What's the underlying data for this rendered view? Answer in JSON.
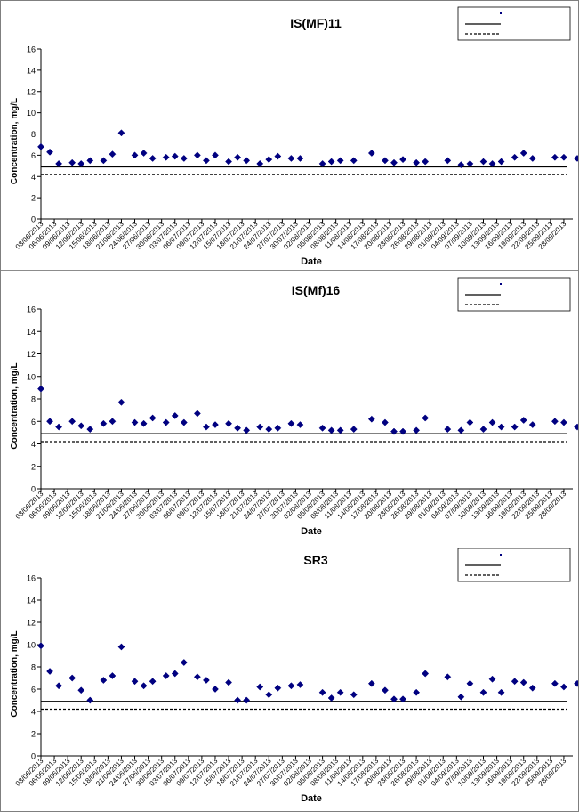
{
  "chart_data": [
    {
      "type": "scatter",
      "title": "IS(MF)11",
      "xlabel": "Date",
      "ylabel": "Concentration, mg/L",
      "ylim": [
        0,
        16
      ],
      "yticks": [
        0,
        2,
        4,
        6,
        8,
        10,
        12,
        14,
        16
      ],
      "grid": false,
      "legend_position": "top-right",
      "xlim": [
        "03/06/2013",
        "30/09/2013"
      ],
      "xtick_labels": [
        "03/06/2013",
        "06/06/2013",
        "09/06/2013",
        "12/06/2013",
        "15/06/2013",
        "18/06/2013",
        "21/06/2013",
        "24/06/2013",
        "27/06/2013",
        "30/06/2013",
        "03/07/2013",
        "06/07/2013",
        "09/07/2013",
        "12/07/2013",
        "15/07/2013",
        "18/07/2013",
        "21/07/2013",
        "24/07/2013",
        "27/07/2013",
        "30/07/2013",
        "02/08/2013",
        "05/08/2013",
        "08/08/2013",
        "11/08/2013",
        "14/08/2013",
        "17/08/2013",
        "20/08/2013",
        "23/08/2013",
        "26/08/2013",
        "29/08/2013",
        "01/09/2013",
        "04/09/2013",
        "07/09/2013",
        "10/09/2013",
        "13/09/2013",
        "16/09/2013",
        "19/09/2013",
        "22/09/2013",
        "25/09/2013",
        "28/09/2013"
      ],
      "x": [
        "03/06/2013",
        "05/06/2013",
        "07/06/2013",
        "10/06/2013",
        "12/06/2013",
        "14/06/2013",
        "17/06/2013",
        "19/06/2013",
        "21/06/2013",
        "24/06/2013",
        "26/06/2013",
        "28/06/2013",
        "01/07/2013",
        "03/07/2013",
        "05/07/2013",
        "08/07/2013",
        "10/07/2013",
        "12/07/2013",
        "15/07/2013",
        "17/07/2013",
        "19/07/2013",
        "22/07/2013",
        "24/07/2013",
        "26/07/2013",
        "29/07/2013",
        "31/07/2013",
        "05/08/2013",
        "07/08/2013",
        "09/08/2013",
        "12/08/2013",
        "16/08/2013",
        "19/08/2013",
        "21/08/2013",
        "23/08/2013",
        "26/08/2013",
        "28/08/2013",
        "02/09/2013",
        "05/09/2013",
        "07/09/2013",
        "10/09/2013",
        "12/09/2013",
        "14/09/2013",
        "17/09/2013",
        "19/09/2013",
        "21/09/2013",
        "26/09/2013",
        "28/09/2013",
        "01/10/2013"
      ],
      "series": [
        {
          "color": "#000080",
          "marker": "diamond",
          "values": [
            6.8,
            6.3,
            5.2,
            5.3,
            5.2,
            5.5,
            5.5,
            6.1,
            8.1,
            6.0,
            6.2,
            5.7,
            5.8,
            5.9,
            5.7,
            6.0,
            5.5,
            6.0,
            5.4,
            5.8,
            5.5,
            5.2,
            5.6,
            5.9,
            5.7,
            5.7,
            5.2,
            5.4,
            5.5,
            5.5,
            6.2,
            5.5,
            5.3,
            5.6,
            5.3,
            5.4,
            5.5,
            5.1,
            5.2,
            5.4,
            5.2,
            5.4,
            5.8,
            6.2,
            5.7,
            5.8,
            5.8,
            5.7
          ]
        }
      ],
      "reference_lines": [
        {
          "value": 4.9,
          "style": "solid",
          "color": "#000000"
        },
        {
          "value": 4.2,
          "style": "dashed",
          "color": "#000000"
        }
      ]
    },
    {
      "type": "scatter",
      "title": "IS(Mf)16",
      "xlabel": "Date",
      "ylabel": "Concentration, mg/L",
      "ylim": [
        0,
        16
      ],
      "yticks": [
        0,
        2,
        4,
        6,
        8,
        10,
        12,
        14,
        16
      ],
      "grid": false,
      "legend_position": "top-right",
      "xlim": [
        "03/06/2013",
        "30/09/2013"
      ],
      "xtick_labels": [
        "03/06/2013",
        "06/06/2013",
        "09/06/2013",
        "12/06/2013",
        "15/06/2013",
        "18/06/2013",
        "21/06/2013",
        "24/06/2013",
        "27/06/2013",
        "30/06/2013",
        "03/07/2013",
        "06/07/2013",
        "09/07/2013",
        "12/07/2013",
        "15/07/2013",
        "18/07/2013",
        "21/07/2013",
        "24/07/2013",
        "27/07/2013",
        "30/07/2013",
        "02/08/2013",
        "05/08/2013",
        "08/08/2013",
        "11/08/2013",
        "14/08/2013",
        "17/08/2013",
        "20/08/2013",
        "23/08/2013",
        "26/08/2013",
        "29/08/2013",
        "01/09/2013",
        "04/09/2013",
        "07/09/2013",
        "10/09/2013",
        "13/09/2013",
        "16/09/2013",
        "19/09/2013",
        "22/09/2013",
        "25/09/2013",
        "28/09/2013"
      ],
      "x": [
        "03/06/2013",
        "05/06/2013",
        "07/06/2013",
        "10/06/2013",
        "12/06/2013",
        "14/06/2013",
        "17/06/2013",
        "19/06/2013",
        "21/06/2013",
        "24/06/2013",
        "26/06/2013",
        "28/06/2013",
        "01/07/2013",
        "03/07/2013",
        "05/07/2013",
        "08/07/2013",
        "10/07/2013",
        "12/07/2013",
        "15/07/2013",
        "17/07/2013",
        "19/07/2013",
        "22/07/2013",
        "24/07/2013",
        "26/07/2013",
        "29/07/2013",
        "31/07/2013",
        "05/08/2013",
        "07/08/2013",
        "09/08/2013",
        "12/08/2013",
        "16/08/2013",
        "19/08/2013",
        "21/08/2013",
        "23/08/2013",
        "26/08/2013",
        "28/08/2013",
        "02/09/2013",
        "05/09/2013",
        "07/09/2013",
        "10/09/2013",
        "12/09/2013",
        "14/09/2013",
        "17/09/2013",
        "19/09/2013",
        "21/09/2013",
        "26/09/2013",
        "28/09/2013",
        "01/10/2013"
      ],
      "series": [
        {
          "color": "#000080",
          "marker": "diamond",
          "values": [
            8.9,
            6.0,
            5.5,
            6.0,
            5.6,
            5.3,
            5.8,
            6.0,
            7.7,
            5.9,
            5.8,
            6.3,
            5.9,
            6.5,
            5.9,
            6.7,
            5.5,
            5.7,
            5.8,
            5.4,
            5.2,
            5.5,
            5.3,
            5.4,
            5.8,
            5.7,
            5.4,
            5.2,
            5.2,
            5.3,
            6.2,
            5.9,
            5.1,
            5.1,
            5.2,
            6.3,
            5.3,
            5.2,
            5.9,
            5.3,
            5.9,
            5.5,
            5.5,
            6.1,
            5.7,
            6.0,
            5.9,
            5.5
          ]
        }
      ],
      "reference_lines": [
        {
          "value": 4.9,
          "style": "solid",
          "color": "#000000"
        },
        {
          "value": 4.2,
          "style": "dashed",
          "color": "#000000"
        }
      ]
    },
    {
      "type": "scatter",
      "title": "SR3",
      "xlabel": "Date",
      "ylabel": "Concentration, mg/L",
      "ylim": [
        0,
        16
      ],
      "yticks": [
        0,
        2,
        4,
        6,
        8,
        10,
        12,
        14,
        16
      ],
      "grid": false,
      "legend_position": "top-right",
      "xlim": [
        "03/06/2013",
        "30/09/2013"
      ],
      "xtick_labels": [
        "03/06/2013",
        "06/06/2013",
        "09/06/2013",
        "12/06/2013",
        "15/06/2013",
        "18/06/2013",
        "21/06/2013",
        "24/06/2013",
        "27/06/2013",
        "30/06/2013",
        "03/07/2013",
        "06/07/2013",
        "09/07/2013",
        "12/07/2013",
        "15/07/2013",
        "18/07/2013",
        "21/07/2013",
        "24/07/2013",
        "27/07/2013",
        "30/07/2013",
        "02/08/2013",
        "05/08/2013",
        "08/08/2013",
        "11/08/2013",
        "14/08/2013",
        "17/08/2013",
        "20/08/2013",
        "23/08/2013",
        "26/08/2013",
        "29/08/2013",
        "01/09/2013",
        "04/09/2013",
        "07/09/2013",
        "10/09/2013",
        "13/09/2013",
        "16/09/2013",
        "19/09/2013",
        "22/09/2013",
        "25/09/2013",
        "28/09/2013"
      ],
      "x": [
        "03/06/2013",
        "05/06/2013",
        "07/06/2013",
        "10/06/2013",
        "12/06/2013",
        "14/06/2013",
        "17/06/2013",
        "19/06/2013",
        "21/06/2013",
        "24/06/2013",
        "26/06/2013",
        "28/06/2013",
        "01/07/2013",
        "03/07/2013",
        "05/07/2013",
        "08/07/2013",
        "10/07/2013",
        "12/07/2013",
        "15/07/2013",
        "17/07/2013",
        "19/07/2013",
        "22/07/2013",
        "24/07/2013",
        "26/07/2013",
        "29/07/2013",
        "31/07/2013",
        "05/08/2013",
        "07/08/2013",
        "09/08/2013",
        "12/08/2013",
        "16/08/2013",
        "19/08/2013",
        "21/08/2013",
        "23/08/2013",
        "26/08/2013",
        "28/08/2013",
        "02/09/2013",
        "05/09/2013",
        "07/09/2013",
        "10/09/2013",
        "12/09/2013",
        "14/09/2013",
        "17/09/2013",
        "19/09/2013",
        "21/09/2013",
        "26/09/2013",
        "28/09/2013",
        "01/10/2013"
      ],
      "series": [
        {
          "color": "#000080",
          "marker": "diamond",
          "values": [
            9.9,
            7.6,
            6.3,
            7.0,
            5.9,
            5.0,
            6.8,
            7.2,
            9.8,
            6.7,
            6.3,
            6.7,
            7.2,
            7.4,
            8.4,
            7.1,
            6.8,
            6.0,
            6.6,
            5.0,
            5.0,
            6.2,
            5.5,
            6.1,
            6.3,
            6.4,
            5.7,
            5.2,
            5.7,
            5.5,
            6.5,
            5.9,
            5.1,
            5.1,
            5.7,
            7.4,
            7.1,
            5.3,
            6.5,
            5.7,
            6.9,
            5.7,
            6.7,
            6.6,
            6.1,
            6.5,
            6.2,
            6.5
          ]
        }
      ],
      "reference_lines": [
        {
          "value": 4.9,
          "style": "solid",
          "color": "#000000"
        },
        {
          "value": 4.2,
          "style": "dashed",
          "color": "#000000"
        }
      ]
    }
  ]
}
